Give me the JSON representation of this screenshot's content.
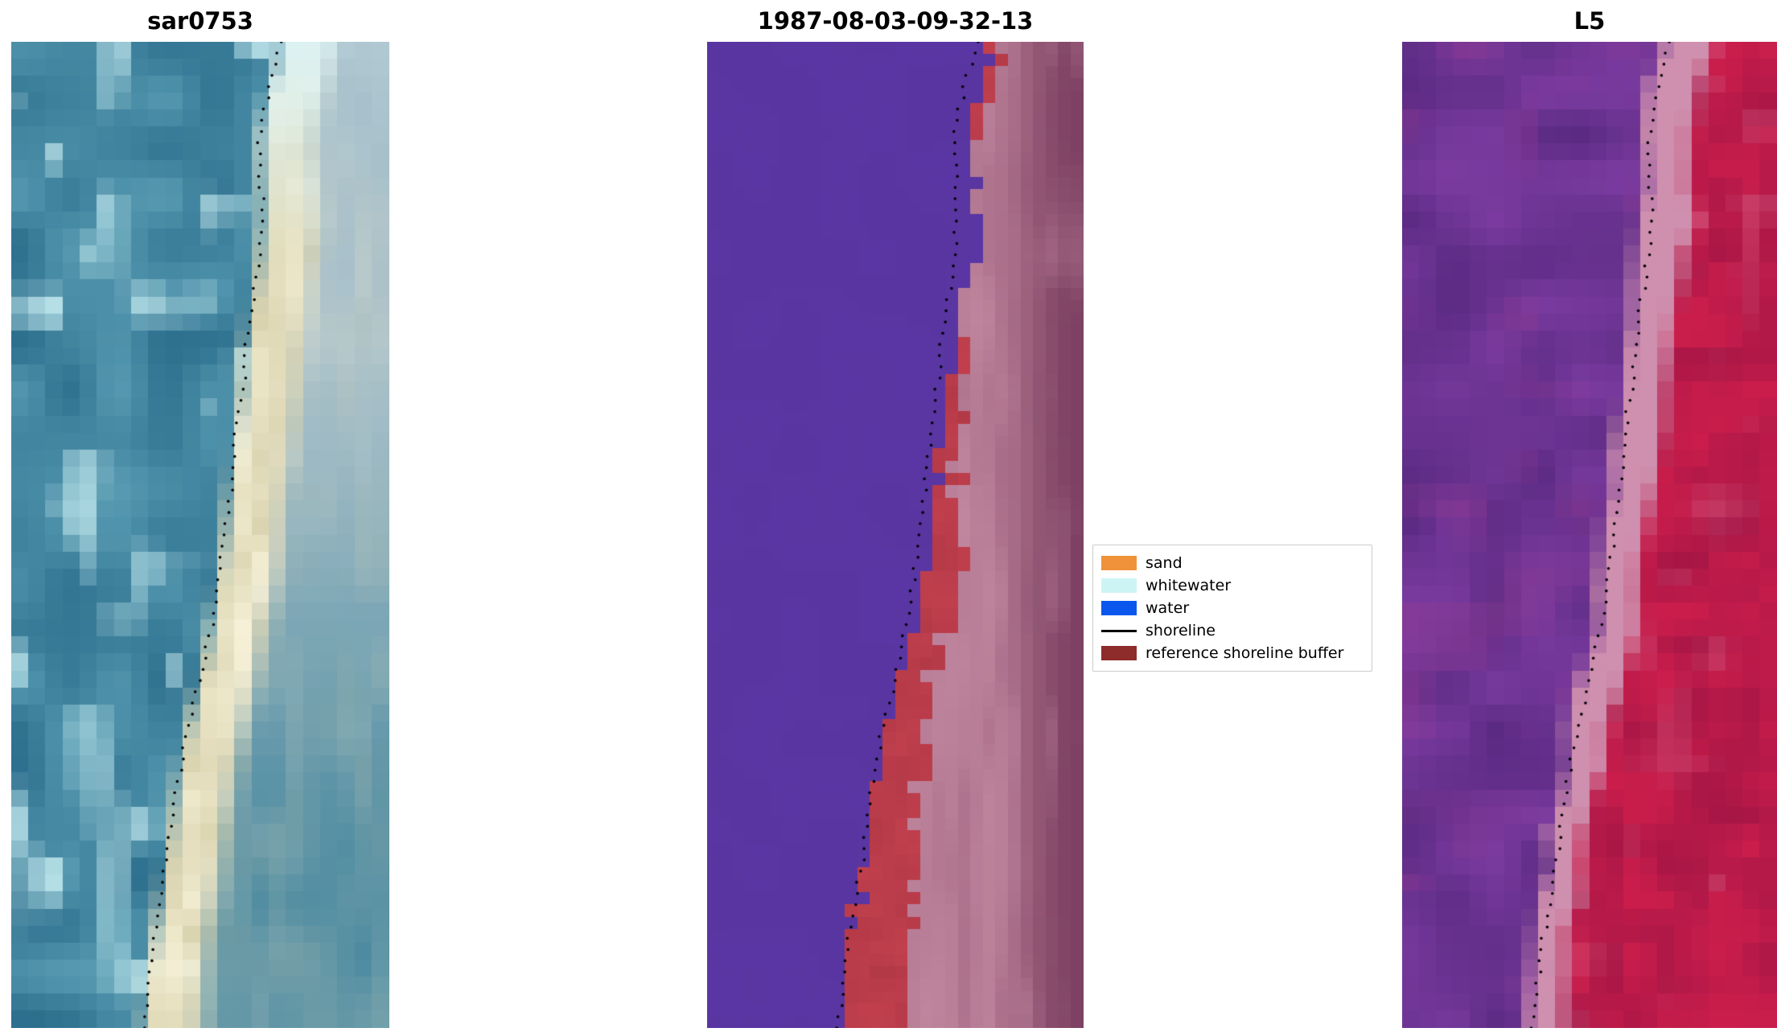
{
  "figure": {
    "background": "#ffffff",
    "panels": [
      {
        "title": "sar0753"
      },
      {
        "title": "1987-08-03-09-32-13"
      },
      {
        "title": "L5"
      }
    ],
    "legend": {
      "items": [
        {
          "label": "sand",
          "color": "#f0923a",
          "swatch": "patch"
        },
        {
          "label": "whitewater",
          "color": "#cdf4f4",
          "swatch": "patch"
        },
        {
          "label": "water",
          "color": "#0b57ee",
          "swatch": "patch"
        },
        {
          "label": "shoreline",
          "color": "#000000",
          "swatch": "line"
        },
        {
          "label": "reference shoreline buffer",
          "color": "#8e2c2c",
          "swatch": "patch"
        }
      ]
    }
  },
  "chart_data": {
    "type": "heatmap",
    "panel_titles": [
      "sar0753",
      "1987-08-03-09-32-13",
      "L5"
    ],
    "legend_entries": [
      "sand",
      "whitewater",
      "water",
      "shoreline",
      "reference shoreline buffer"
    ],
    "legend_colors": {
      "sand": "#f0923a",
      "whitewater": "#cdf4f4",
      "water": "#0b57ee",
      "shoreline": "#000000",
      "reference_shoreline_buffer": "#8e2c2c"
    },
    "shoreline_path": [
      [
        0.0,
        0.715
      ],
      [
        0.03,
        0.695
      ],
      [
        0.06,
        0.675
      ],
      [
        0.1,
        0.655
      ],
      [
        0.14,
        0.66
      ],
      [
        0.18,
        0.665
      ],
      [
        0.22,
        0.655
      ],
      [
        0.26,
        0.64
      ],
      [
        0.3,
        0.625
      ],
      [
        0.34,
        0.615
      ],
      [
        0.38,
        0.6
      ],
      [
        0.42,
        0.59
      ],
      [
        0.46,
        0.578
      ],
      [
        0.5,
        0.565
      ],
      [
        0.54,
        0.55
      ],
      [
        0.58,
        0.535
      ],
      [
        0.62,
        0.515
      ],
      [
        0.66,
        0.49
      ],
      [
        0.7,
        0.465
      ],
      [
        0.74,
        0.445
      ],
      [
        0.78,
        0.43
      ],
      [
        0.82,
        0.415
      ],
      [
        0.86,
        0.4
      ],
      [
        0.9,
        0.38
      ],
      [
        0.94,
        0.365
      ],
      [
        1.0,
        0.35
      ]
    ],
    "palettes": {
      "sar": {
        "water_dark": "#2a6d8c",
        "water_light": "#579ab1",
        "whitewater": "#c9eef2",
        "sand_bright": "#f6f1d7",
        "sand_dim": "#d9d2ae",
        "band_top_cyan": "#dcf2f3",
        "right_haze_top": "#a6bfca",
        "right_teal_bottom": "#4e8ba1"
      },
      "classified": {
        "purple": "#5a36a4",
        "red": "#c2404e",
        "mauve_light": "#b97e97",
        "mauve_dark": "#7e4163",
        "pink_column": "#cb92a9"
      },
      "l5": {
        "purple_dark": "#5a2a82",
        "purple_light": "#7b3ba0",
        "magenta": "#8e3a92",
        "pale_pink": "#cf8fae",
        "red": "#ce1e4c",
        "red_dark": "#a61646"
      }
    },
    "grid": {
      "cols": [
        22,
        30,
        22
      ],
      "rows": [
        58,
        80,
        58
      ]
    }
  }
}
